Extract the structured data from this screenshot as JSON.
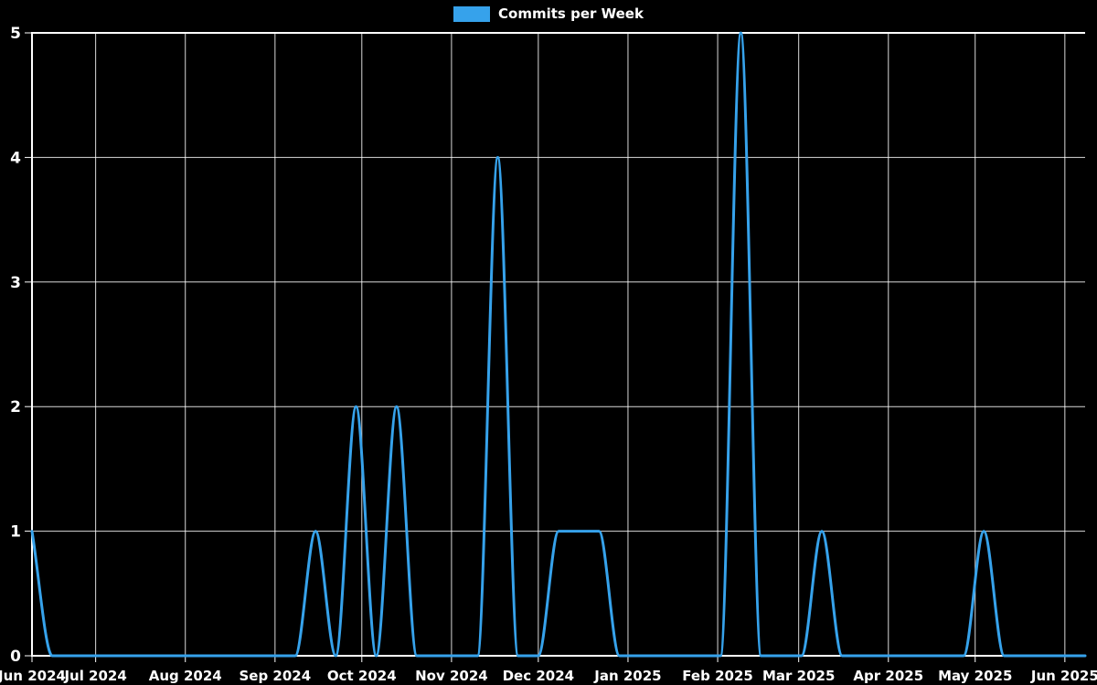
{
  "legend": {
    "items": [
      {
        "label": "Commits per Week",
        "color": "#36a2eb"
      }
    ]
  },
  "chart_data": {
    "type": "line",
    "title": "Commits per Week",
    "legend_position": "top",
    "background_color": "#000000",
    "grid_color": "#ffffff",
    "text_color": "#ffffff",
    "line_color": "#36a2eb",
    "line_width": 3,
    "grid": true,
    "x_axis": {
      "unit": "time",
      "range_days": [
        0,
        364
      ],
      "start_date": "2024-06-09",
      "ticks": [
        {
          "label": "Jun 2024",
          "day": 0
        },
        {
          "label": "Jul 2024",
          "day": 22
        },
        {
          "label": "Aug 2024",
          "day": 53
        },
        {
          "label": "Sep 2024",
          "day": 84
        },
        {
          "label": "Oct 2024",
          "day": 114
        },
        {
          "label": "Nov 2024",
          "day": 145
        },
        {
          "label": "Dec 2024",
          "day": 175
        },
        {
          "label": "Jan 2025",
          "day": 206
        },
        {
          "label": "Feb 2025",
          "day": 237
        },
        {
          "label": "Mar 2025",
          "day": 265
        },
        {
          "label": "Apr 2025",
          "day": 296
        },
        {
          "label": "May 2025",
          "day": 326
        },
        {
          "label": "Jun 2025",
          "day": 357
        }
      ]
    },
    "y_axis": {
      "ticks": [
        0,
        1,
        2,
        3,
        4,
        5
      ],
      "range": [
        0,
        5
      ]
    },
    "series": [
      {
        "name": "Commits per Week",
        "color": "#36a2eb",
        "start_week": "2024-06-09",
        "interval_days": 7,
        "values": [
          1,
          0,
          0,
          0,
          0,
          0,
          0,
          0,
          0,
          0,
          0,
          0,
          0,
          0,
          1,
          0,
          2,
          0,
          2,
          0,
          0,
          0,
          0,
          4,
          0,
          0,
          1,
          1,
          1,
          0,
          0,
          0,
          0,
          0,
          0,
          5,
          0,
          0,
          0,
          1,
          0,
          0,
          0,
          0,
          0,
          0,
          0,
          1,
          0,
          0,
          0,
          0,
          0
        ],
        "nonzero_points": [
          {
            "week_of": "2024-06-09",
            "value": 1
          },
          {
            "week_of": "2024-09-15",
            "value": 1
          },
          {
            "week_of": "2024-09-29",
            "value": 2
          },
          {
            "week_of": "2024-10-13",
            "value": 2
          },
          {
            "week_of": "2024-11-17",
            "value": 4
          },
          {
            "week_of": "2024-12-08",
            "value": 1
          },
          {
            "week_of": "2024-12-15",
            "value": 1
          },
          {
            "week_of": "2024-12-22",
            "value": 1
          },
          {
            "week_of": "2025-02-09",
            "value": 5
          },
          {
            "week_of": "2025-03-09",
            "value": 1
          },
          {
            "week_of": "2025-05-04",
            "value": 1
          }
        ]
      }
    ]
  }
}
